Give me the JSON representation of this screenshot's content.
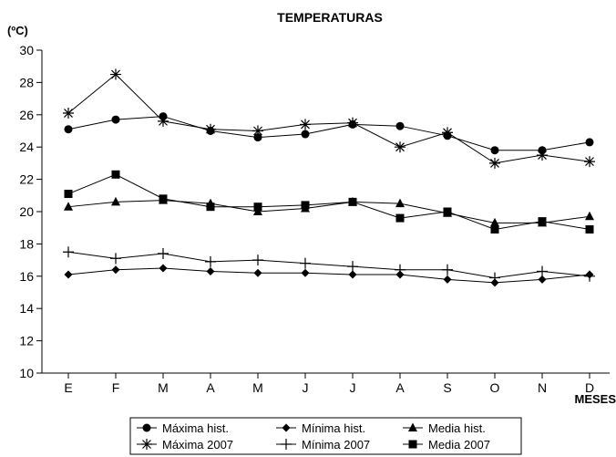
{
  "chart_data": {
    "type": "line",
    "title": "TEMPERATURAS",
    "ylabel": "(ºC)",
    "xlabel": "MESES",
    "categories": [
      "E",
      "F",
      "M",
      "A",
      "M",
      "J",
      "J",
      "A",
      "S",
      "O",
      "N",
      "D"
    ],
    "ylim": [
      10,
      30
    ],
    "yticks": [
      10,
      12,
      14,
      16,
      18,
      20,
      22,
      24,
      26,
      28,
      30
    ],
    "grid": false,
    "legend_position": "bottom",
    "series": [
      {
        "name": "Máxima hist.",
        "marker": "circle",
        "color": "#000000",
        "values": [
          25.1,
          25.7,
          25.9,
          25.0,
          24.6,
          24.8,
          25.4,
          25.3,
          24.7,
          23.8,
          23.8,
          24.3
        ]
      },
      {
        "name": "Máxima 2007",
        "marker": "asterisk",
        "color": "#000000",
        "values": [
          26.1,
          28.5,
          25.6,
          25.1,
          25.0,
          25.4,
          25.5,
          24.0,
          24.9,
          23.0,
          23.5,
          23.1
        ]
      },
      {
        "name": "Mínima hist.",
        "marker": "diamond",
        "color": "#000000",
        "values": [
          16.1,
          16.4,
          16.5,
          16.3,
          16.2,
          16.2,
          16.1,
          16.1,
          15.8,
          15.6,
          15.8,
          16.1
        ]
      },
      {
        "name": "Mínima 2007",
        "marker": "plus",
        "color": "#000000",
        "values": [
          17.5,
          17.1,
          17.4,
          16.9,
          17.0,
          16.8,
          16.6,
          16.4,
          16.4,
          15.9,
          16.3,
          16.0
        ]
      },
      {
        "name": "Media hist.",
        "marker": "triangle",
        "color": "#000000",
        "values": [
          20.3,
          20.6,
          20.7,
          20.5,
          20.0,
          20.2,
          20.6,
          20.5,
          19.9,
          19.3,
          19.3,
          19.7
        ]
      },
      {
        "name": "Media 2007",
        "marker": "square",
        "color": "#000000",
        "values": [
          21.1,
          22.3,
          20.8,
          20.3,
          20.3,
          20.4,
          20.6,
          19.6,
          20.0,
          18.9,
          19.4,
          18.9
        ]
      }
    ],
    "legend_rows": [
      [
        "Máxima hist.",
        "Mínima hist.",
        "Media hist."
      ],
      [
        "Máxima 2007",
        "Mínima 2007",
        "Media 2007"
      ]
    ]
  }
}
